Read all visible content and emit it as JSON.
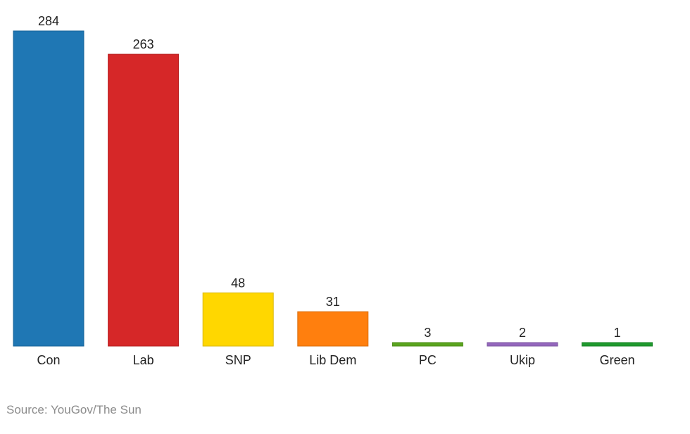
{
  "chart_data": {
    "type": "bar",
    "categories": [
      "Con",
      "Lab",
      "SNP",
      "Lib Dem",
      "PC",
      "Ukip",
      "Green"
    ],
    "values": [
      284,
      263,
      48,
      31,
      3,
      2,
      1
    ],
    "colors": [
      "#1f77b4",
      "#d62728",
      "#ffd700",
      "#ff7f0e",
      "#5aa51e",
      "#9467bd",
      "#1f9a2e"
    ],
    "data_labels": [
      "284",
      "263",
      "48",
      "31",
      "3",
      "2",
      "1"
    ],
    "ylim": [
      0,
      284
    ],
    "grid": false,
    "legend": "none"
  },
  "source": "Source: YouGov/The Sun"
}
